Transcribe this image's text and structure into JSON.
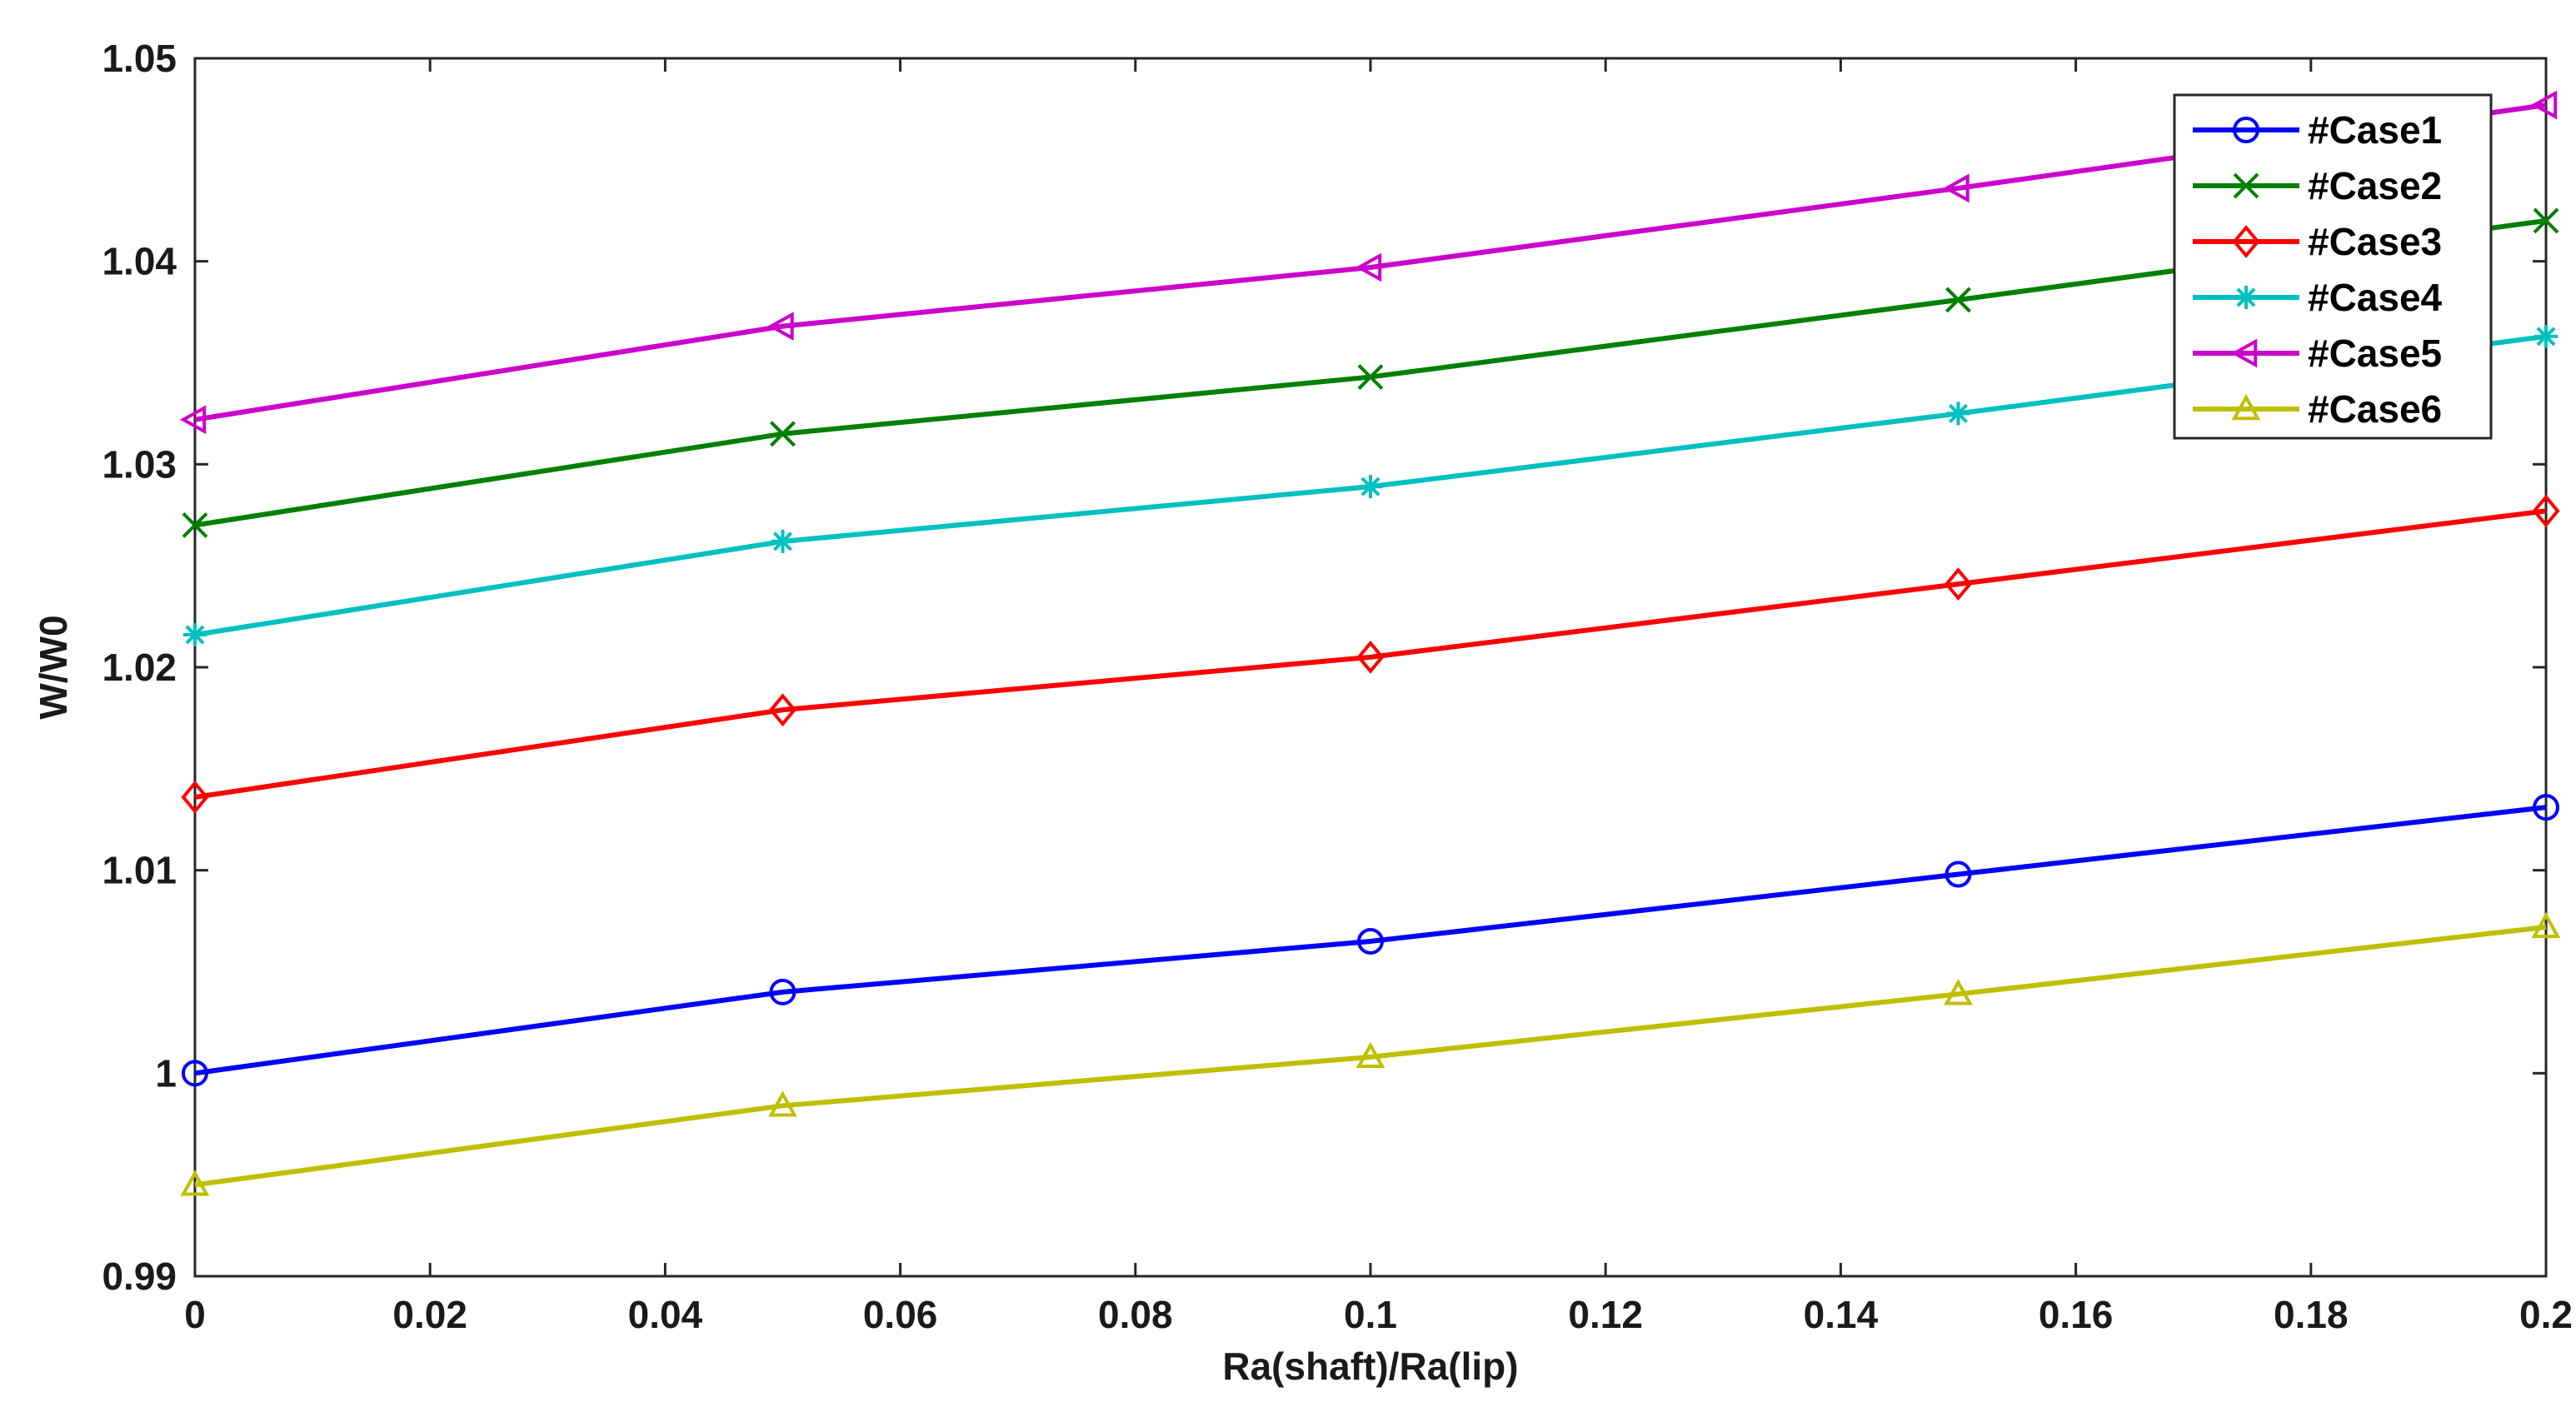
{
  "chart_data": {
    "type": "line",
    "xlabel": "Ra(shaft)/Ra(lip)",
    "ylabel": "W/W0",
    "xlim": [
      0,
      0.2
    ],
    "ylim": [
      0.99,
      1.05
    ],
    "xticks": [
      0,
      0.02,
      0.04,
      0.06,
      0.08,
      0.1,
      0.12,
      0.14,
      0.16,
      0.18,
      0.2
    ],
    "xtick_labels": [
      "0",
      "0.02",
      "0.04",
      "0.06",
      "0.08",
      "0.1",
      "0.12",
      "0.14",
      "0.16",
      "0.18",
      "0.2"
    ],
    "yticks": [
      0.99,
      1.0,
      1.01,
      1.02,
      1.03,
      1.04,
      1.05
    ],
    "ytick_labels": [
      "0.99",
      "1",
      "1.01",
      "1.02",
      "1.03",
      "1.04",
      "1.05"
    ],
    "grid": false,
    "legend_position": "top-right",
    "x": [
      0,
      0.05,
      0.1,
      0.15,
      0.2
    ],
    "series": [
      {
        "name": "#Case1",
        "color": "#0000ff",
        "marker": "circle",
        "values": [
          1.0,
          1.004,
          1.0065,
          1.0098,
          1.0131
        ]
      },
      {
        "name": "#Case2",
        "color": "#008000",
        "marker": "x",
        "values": [
          1.027,
          1.0315,
          1.0343,
          1.0381,
          1.042
        ]
      },
      {
        "name": "#Case3",
        "color": "#ff0000",
        "marker": "diamond",
        "values": [
          1.0136,
          1.0179,
          1.0205,
          1.0241,
          1.0277
        ]
      },
      {
        "name": "#Case4",
        "color": "#00c0c0",
        "marker": "star",
        "values": [
          1.0216,
          1.0262,
          1.0289,
          1.0325,
          1.0363
        ]
      },
      {
        "name": "#Case5",
        "color": "#cc00cc",
        "marker": "triangle-left",
        "values": [
          1.0322,
          1.0368,
          1.0397,
          1.0436,
          1.0477
        ]
      },
      {
        "name": "#Case6",
        "color": "#bfbf00",
        "marker": "triangle-up",
        "values": [
          0.9945,
          0.9984,
          1.0008,
          1.0039,
          1.0072
        ]
      }
    ]
  }
}
